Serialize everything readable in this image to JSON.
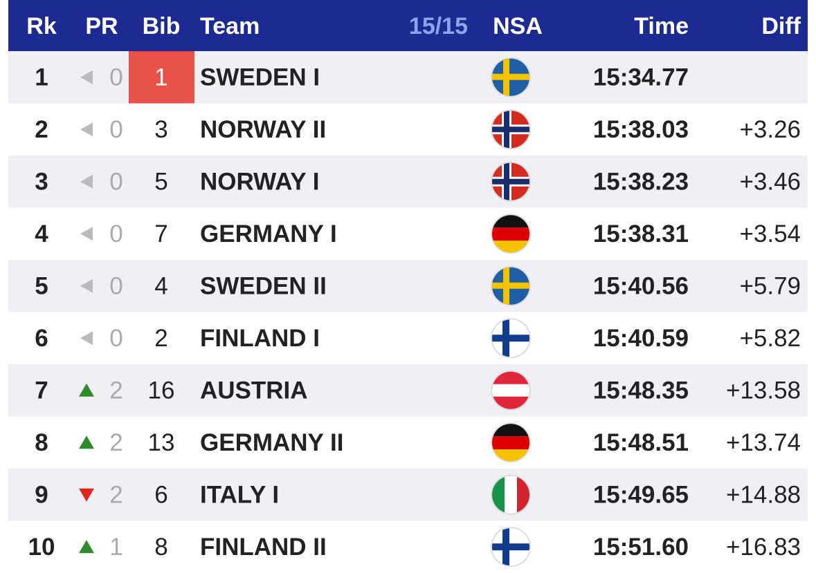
{
  "table": {
    "header": [
      "Rk",
      "PR",
      "Bib",
      "Team",
      "NSA",
      "Time",
      "Diff"
    ],
    "progress": "15/15",
    "rows": [
      {
        "rank": 1,
        "pr": 0,
        "bib": 1,
        "team": "SWEDEN I",
        "time": "15:34.77",
        "diff": null
      },
      {
        "rank": 2,
        "pr": 0,
        "bib": 3,
        "team": "NORWAY II",
        "time": "15:38.03",
        "diff": "+3.26"
      },
      {
        "rank": 3,
        "pr": 0,
        "bib": 5,
        "team": "NORWAY I",
        "time": "15:38.23",
        "diff": "+3.46"
      },
      {
        "rank": 4,
        "pr": 0,
        "bib": 7,
        "team": "GERMANY I",
        "time": "15:38.31",
        "diff": "+3.54"
      },
      {
        "rank": 5,
        "pr": 0,
        "bib": 4,
        "team": "SWEDEN II",
        "time": "15:40.56",
        "diff": "+5.79"
      },
      {
        "rank": 6,
        "pr": 0,
        "bib": 2,
        "team": "FINLAND I",
        "time": "15:40.59",
        "diff": "+5.82"
      },
      {
        "rank": 7,
        "pr": 2,
        "bib": 16,
        "team": "AUSTRIA",
        "time": "15:48.35",
        "diff": "+13.58"
      },
      {
        "rank": 8,
        "pr": 2,
        "bib": 13,
        "team": "GERMANY II",
        "time": "15:48.51",
        "diff": "+13.74"
      },
      {
        "rank": 9,
        "pr": 2,
        "bib": 6,
        "team": "ITALY I",
        "time": "15:49.65",
        "diff": "+14.88"
      },
      {
        "rank": 10,
        "pr": 1,
        "bib": 8,
        "team": "FINLAND II",
        "time": "15:51.60",
        "diff": "+16.83"
      }
    ]
  }
}
